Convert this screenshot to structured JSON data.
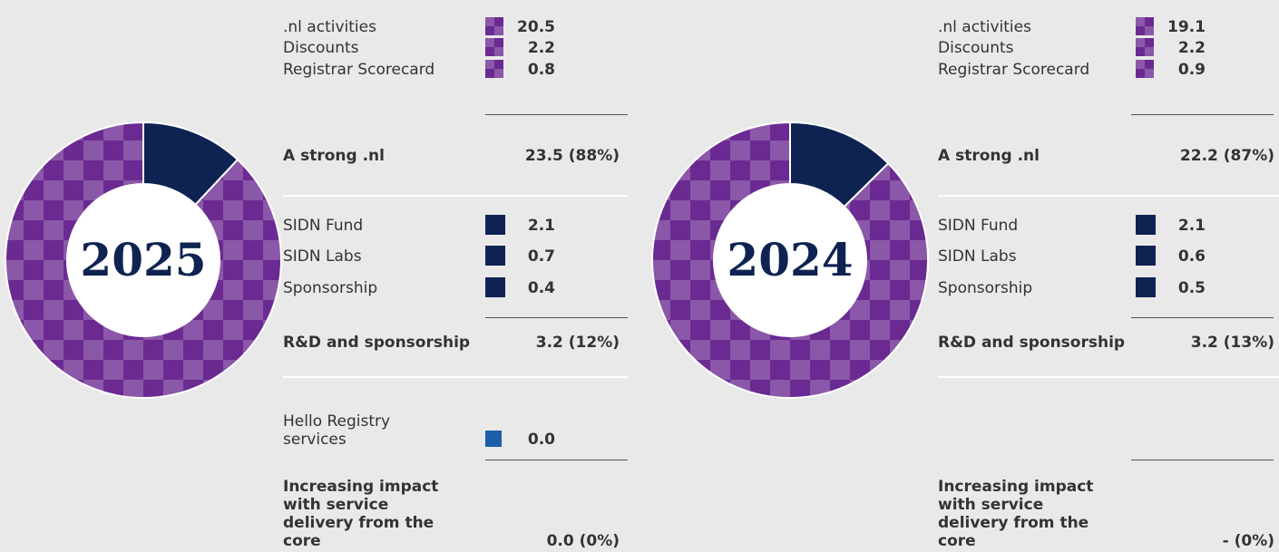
{
  "chart_data": [
    {
      "type": "pie",
      "center_label": "2025",
      "groups": [
        {
          "name": "A strong .nl",
          "value": 23.5,
          "value_label": "23.5 (88%)",
          "color": "#6b2a92",
          "pattern_color": "#8b57a8",
          "items": {
            "names": [
              ".nl activities",
              "Discounts",
              "Registrar Scorecard"
            ],
            "values": [
              20.5,
              2.2,
              0.8
            ]
          }
        },
        {
          "name": "R&D and sponsorship",
          "value": 3.2,
          "value_label": "3.2 (12%)",
          "color": "#0e2352",
          "items": {
            "names": [
              "SIDN Fund",
              "SIDN Labs",
              "Sponsorship"
            ],
            "values": [
              2.1,
              0.7,
              0.4
            ]
          }
        },
        {
          "name": "Increasing impact with service delivery from the core",
          "value": 0,
          "value_label": "0.0 (0%)",
          "color": "#1c5fa8",
          "items": {
            "names": [
              "Hello Registry services"
            ],
            "values": [
              0
            ],
            "value_labels": [
              "0.0"
            ]
          }
        }
      ]
    },
    {
      "type": "pie",
      "center_label": "2024",
      "groups": [
        {
          "name": "A strong .nl",
          "value": 22.2,
          "value_label": "22.2 (87%)",
          "color": "#6b2a92",
          "pattern_color": "#8b57a8",
          "items": {
            "names": [
              ".nl activities",
              "Discounts",
              "Registrar Scorecard"
            ],
            "values": [
              19.1,
              2.2,
              0.9
            ]
          }
        },
        {
          "name": "R&D and sponsorship",
          "value": 3.2,
          "value_label": "3.2 (13%)",
          "color": "#0e2352",
          "items": {
            "names": [
              "SIDN Fund",
              "SIDN Labs",
              "Sponsorship"
            ],
            "values": [
              2.1,
              0.6,
              0.5
            ]
          }
        },
        {
          "name": "Increasing impact with service delivery from the core",
          "value": null,
          "value_label": "- (0%)",
          "color": "#1c5fa8",
          "items": {
            "names": [],
            "values": []
          }
        }
      ]
    }
  ]
}
